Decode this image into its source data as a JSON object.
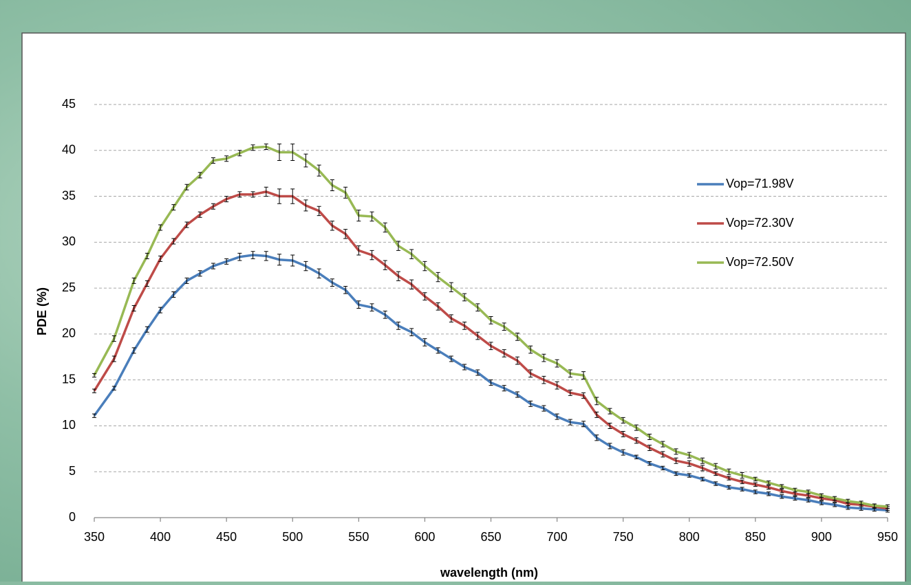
{
  "chart_data": {
    "type": "line",
    "x_label": "wavelength (nm)",
    "y_label": "PDE (%)",
    "x": [
      350,
      365,
      380,
      390,
      400,
      410,
      420,
      430,
      440,
      450,
      460,
      470,
      480,
      490,
      500,
      510,
      520,
      530,
      540,
      550,
      560,
      570,
      580,
      590,
      600,
      610,
      620,
      630,
      640,
      650,
      660,
      670,
      680,
      690,
      700,
      710,
      720,
      730,
      740,
      750,
      760,
      770,
      780,
      790,
      800,
      810,
      820,
      830,
      840,
      850,
      860,
      870,
      880,
      890,
      900,
      910,
      920,
      930,
      940,
      950
    ],
    "series": [
      {
        "name": "Vop=71.98V",
        "color": "#4a7ebb",
        "values": [
          11.1,
          14.1,
          18.2,
          20.5,
          22.6,
          24.3,
          25.8,
          26.6,
          27.4,
          27.9,
          28.4,
          28.6,
          28.5,
          28.1,
          28.0,
          27.4,
          26.6,
          25.6,
          24.8,
          23.2,
          22.9,
          22.1,
          20.9,
          20.2,
          19.1,
          18.2,
          17.3,
          16.4,
          15.8,
          14.7,
          14.1,
          13.4,
          12.4,
          11.9,
          11.0,
          10.4,
          10.2,
          8.7,
          7.8,
          7.1,
          6.6,
          5.9,
          5.4,
          4.8,
          4.6,
          4.2,
          3.7,
          3.3,
          3.1,
          2.8,
          2.6,
          2.3,
          2.1,
          1.9,
          1.6,
          1.4,
          1.1,
          1.0,
          0.9,
          0.8
        ],
        "errors": [
          0.2,
          0.2,
          0.3,
          0.3,
          0.3,
          0.3,
          0.3,
          0.3,
          0.3,
          0.3,
          0.4,
          0.4,
          0.5,
          0.6,
          0.6,
          0.5,
          0.5,
          0.4,
          0.4,
          0.4,
          0.4,
          0.4,
          0.4,
          0.4,
          0.4,
          0.3,
          0.3,
          0.3,
          0.3,
          0.3,
          0.3,
          0.3,
          0.3,
          0.3,
          0.3,
          0.3,
          0.3,
          0.3,
          0.3,
          0.3,
          0.2,
          0.2,
          0.2,
          0.2,
          0.2,
          0.2,
          0.2,
          0.2,
          0.2,
          0.2,
          0.2,
          0.2,
          0.2,
          0.2,
          0.2,
          0.2,
          0.2,
          0.2,
          0.2,
          0.2
        ]
      },
      {
        "name": "Vop=72.30V",
        "color": "#be4b48",
        "values": [
          13.8,
          17.3,
          22.8,
          25.5,
          28.2,
          30.1,
          31.9,
          33.0,
          33.9,
          34.7,
          35.2,
          35.2,
          35.5,
          35.0,
          35.0,
          34.0,
          33.4,
          31.8,
          30.9,
          29.1,
          28.6,
          27.5,
          26.3,
          25.4,
          24.1,
          23.0,
          21.7,
          20.9,
          19.8,
          18.7,
          17.9,
          17.1,
          15.7,
          15.0,
          14.4,
          13.6,
          13.3,
          11.2,
          10.0,
          9.1,
          8.4,
          7.6,
          6.9,
          6.2,
          5.9,
          5.4,
          4.8,
          4.3,
          3.9,
          3.6,
          3.3,
          2.9,
          2.6,
          2.4,
          2.1,
          1.9,
          1.5,
          1.4,
          1.2,
          1.0
        ],
        "errors": [
          0.2,
          0.3,
          0.3,
          0.3,
          0.3,
          0.3,
          0.3,
          0.3,
          0.3,
          0.3,
          0.3,
          0.3,
          0.5,
          0.8,
          0.8,
          0.6,
          0.5,
          0.5,
          0.5,
          0.5,
          0.5,
          0.5,
          0.5,
          0.5,
          0.4,
          0.4,
          0.4,
          0.4,
          0.4,
          0.4,
          0.4,
          0.4,
          0.4,
          0.4,
          0.4,
          0.3,
          0.3,
          0.3,
          0.3,
          0.3,
          0.3,
          0.3,
          0.3,
          0.3,
          0.3,
          0.3,
          0.2,
          0.2,
          0.2,
          0.2,
          0.2,
          0.2,
          0.2,
          0.2,
          0.2,
          0.2,
          0.2,
          0.2,
          0.2,
          0.2
        ]
      },
      {
        "name": "Vop=72.50V",
        "color": "#98b954",
        "values": [
          15.5,
          19.5,
          25.8,
          28.5,
          31.6,
          33.8,
          36.0,
          37.3,
          38.9,
          39.1,
          39.7,
          40.3,
          40.4,
          39.8,
          39.8,
          38.9,
          37.8,
          36.2,
          35.4,
          32.9,
          32.8,
          31.6,
          29.6,
          28.7,
          27.4,
          26.2,
          25.1,
          24.0,
          22.9,
          21.5,
          20.8,
          19.7,
          18.3,
          17.4,
          16.8,
          15.7,
          15.5,
          12.7,
          11.6,
          10.6,
          9.8,
          8.8,
          8.0,
          7.2,
          6.8,
          6.2,
          5.6,
          5.0,
          4.6,
          4.2,
          3.8,
          3.4,
          3.0,
          2.8,
          2.4,
          2.1,
          1.8,
          1.6,
          1.3,
          1.2
        ],
        "errors": [
          0.2,
          0.3,
          0.3,
          0.3,
          0.3,
          0.3,
          0.3,
          0.3,
          0.3,
          0.3,
          0.3,
          0.3,
          0.3,
          0.9,
          0.9,
          0.7,
          0.6,
          0.6,
          0.6,
          0.6,
          0.5,
          0.5,
          0.5,
          0.5,
          0.5,
          0.5,
          0.5,
          0.4,
          0.4,
          0.4,
          0.4,
          0.4,
          0.4,
          0.4,
          0.4,
          0.4,
          0.4,
          0.4,
          0.3,
          0.3,
          0.3,
          0.3,
          0.3,
          0.3,
          0.3,
          0.3,
          0.3,
          0.3,
          0.3,
          0.2,
          0.2,
          0.2,
          0.2,
          0.2,
          0.2,
          0.2,
          0.2,
          0.2,
          0.2,
          0.2
        ]
      }
    ],
    "xlim": [
      350,
      950
    ],
    "xticks": [
      350,
      400,
      450,
      500,
      550,
      600,
      650,
      700,
      750,
      800,
      850,
      900,
      950
    ],
    "ylim": [
      0,
      45
    ],
    "yticks": [
      0,
      5,
      10,
      15,
      20,
      25,
      30,
      35,
      40,
      45
    ],
    "grid": true,
    "legend": "right"
  }
}
